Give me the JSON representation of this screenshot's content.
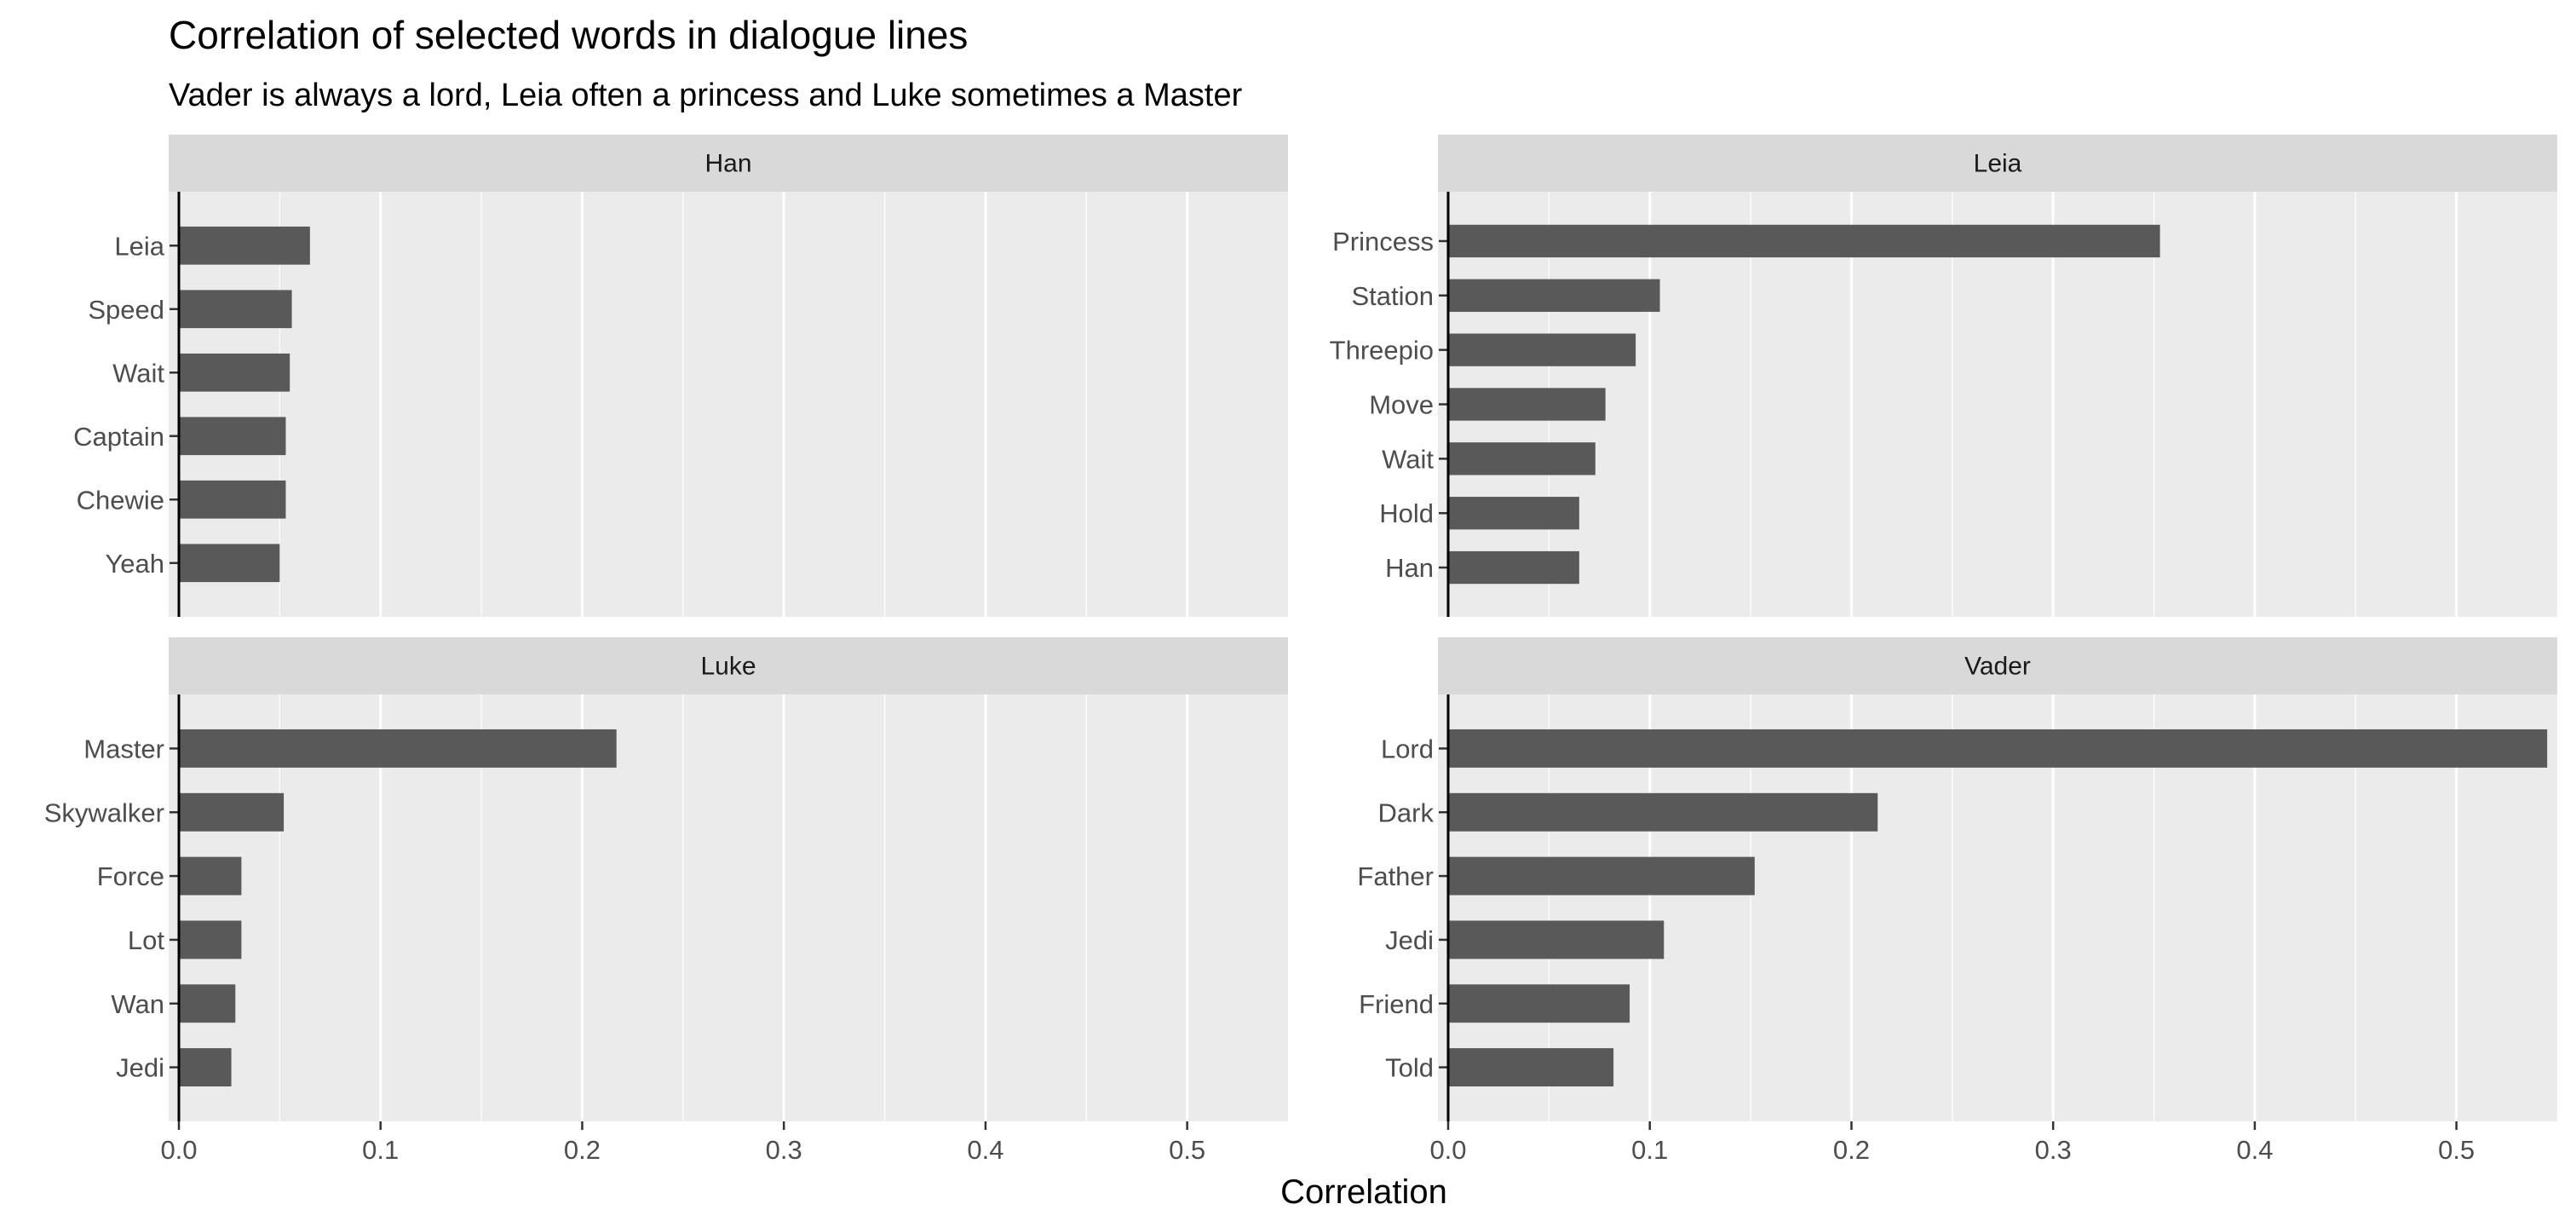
{
  "title": "Correlation of selected words in dialogue lines",
  "subtitle": "Vader is always a lord, Leia often a princess and Luke sometimes a Master",
  "chart_data": {
    "type": "bar",
    "orientation": "horizontal",
    "title": "Correlation of selected words in dialogue lines",
    "subtitle": "Vader is always a lord, Leia often a princess and Luke sometimes a Master",
    "xlabel": "Correlation",
    "ylabel": "",
    "xlim": [
      0,
      0.55
    ],
    "x_ticks": [
      "0.0",
      "0.1",
      "0.2",
      "0.3",
      "0.4",
      "0.5"
    ],
    "x_tick_values": [
      0,
      0.1,
      0.2,
      0.3,
      0.4,
      0.5
    ],
    "grid": true,
    "bar_color": "#595959",
    "panel_background": "#ebebeb",
    "strip_background": "#d9d9d9",
    "facets": [
      {
        "name": "Han",
        "categories": [
          "Leia",
          "Speed",
          "Wait",
          "Captain",
          "Chewie",
          "Yeah"
        ],
        "values": [
          0.065,
          0.056,
          0.055,
          0.053,
          0.053,
          0.05
        ]
      },
      {
        "name": "Leia",
        "categories": [
          "Princess",
          "Station",
          "Threepio",
          "Move",
          "Wait",
          "Hold",
          "Han"
        ],
        "values": [
          0.353,
          0.105,
          0.093,
          0.078,
          0.073,
          0.065,
          0.065
        ]
      },
      {
        "name": "Luke",
        "categories": [
          "Master",
          "Skywalker",
          "Force",
          "Lot",
          "Wan",
          "Jedi"
        ],
        "values": [
          0.217,
          0.052,
          0.031,
          0.031,
          0.028,
          0.026
        ]
      },
      {
        "name": "Vader",
        "categories": [
          "Lord",
          "Dark",
          "Father",
          "Jedi",
          "Friend",
          "Told"
        ],
        "values": [
          0.545,
          0.213,
          0.152,
          0.107,
          0.09,
          0.082
        ]
      }
    ]
  }
}
